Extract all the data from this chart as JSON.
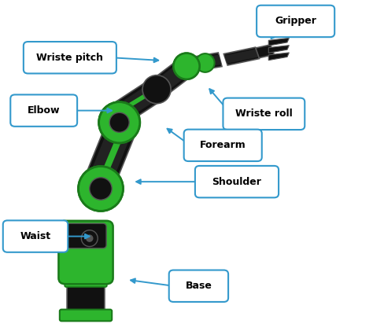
{
  "fig_width": 4.74,
  "fig_height": 4.21,
  "dpi": 100,
  "bg_color": "#ffffff",
  "green": "#2db52d",
  "dark_green": "#1a7a1a",
  "black": "#111111",
  "dark_gray": "#222222",
  "mid_gray": "#555555",
  "box_edge_color": "#3399cc",
  "box_face_color": "#ffffff",
  "text_color": "#000000",
  "arrow_color": "#3399cc",
  "font_size": 9,
  "font_weight": "bold",
  "labels": [
    {
      "text": "Gripper",
      "bx": 0.7,
      "by": 0.9,
      "bw": 0.185,
      "bh": 0.072,
      "asx": 0.755,
      "asy": 0.918,
      "aex": 0.72,
      "aey": 0.875
    },
    {
      "text": "Wriste pitch",
      "bx": 0.075,
      "by": 0.79,
      "bw": 0.225,
      "bh": 0.072,
      "asx": 0.3,
      "asy": 0.826,
      "aex": 0.435,
      "aey": 0.817
    },
    {
      "text": "Elbow",
      "bx": 0.04,
      "by": 0.63,
      "bw": 0.155,
      "bh": 0.072,
      "asx": 0.195,
      "asy": 0.666,
      "aex": 0.31,
      "aey": 0.666
    },
    {
      "text": "Wriste roll",
      "bx": 0.61,
      "by": 0.62,
      "bw": 0.195,
      "bh": 0.072,
      "asx": 0.61,
      "asy": 0.668,
      "aex": 0.555,
      "aey": 0.74
    },
    {
      "text": "Forearm",
      "bx": 0.505,
      "by": 0.525,
      "bw": 0.185,
      "bh": 0.072,
      "asx": 0.505,
      "asy": 0.565,
      "aex": 0.44,
      "aey": 0.618
    },
    {
      "text": "Shoulder",
      "bx": 0.535,
      "by": 0.415,
      "bw": 0.2,
      "bh": 0.072,
      "asx": 0.535,
      "asy": 0.451,
      "aex": 0.355,
      "aey": 0.451
    },
    {
      "text": "Waist",
      "bx": 0.02,
      "by": 0.25,
      "bw": 0.15,
      "bh": 0.072,
      "asx": 0.17,
      "asy": 0.286,
      "aex": 0.25,
      "aey": 0.286
    },
    {
      "text": "Base",
      "bx": 0.465,
      "by": 0.1,
      "bw": 0.135,
      "bh": 0.072,
      "asx": 0.465,
      "asy": 0.136,
      "aex": 0.34,
      "aey": 0.155
    }
  ]
}
